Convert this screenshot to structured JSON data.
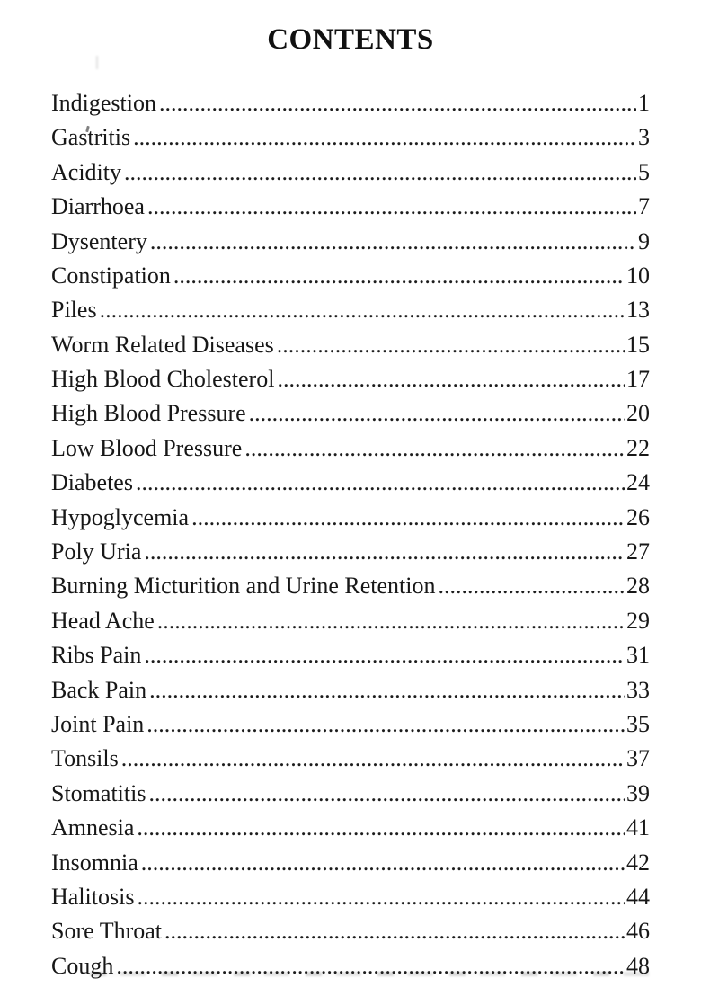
{
  "title": "CONTENTS",
  "colors": {
    "ink": "#1a1a1a",
    "paper": "#ffffff"
  },
  "toc": {
    "entries": [
      {
        "label": "Indigestion",
        "page": "1"
      },
      {
        "label": "Gastritis",
        "page": "3"
      },
      {
        "label": "Acidity",
        "page": "5"
      },
      {
        "label": "Diarrhoea",
        "page": "7"
      },
      {
        "label": "Dysentery",
        "page": "9"
      },
      {
        "label": "Constipation",
        "page": "10"
      },
      {
        "label": "Piles",
        "page": "13"
      },
      {
        "label": "Worm Related Diseases",
        "page": "15"
      },
      {
        "label": "High Blood Cholesterol",
        "page": "17"
      },
      {
        "label": "High Blood Pressure",
        "page": "20"
      },
      {
        "label": "Low Blood Pressure",
        "page": "22"
      },
      {
        "label": "Diabetes",
        "page": "24"
      },
      {
        "label": "Hypoglycemia",
        "page": "26"
      },
      {
        "label": "Poly Uria",
        "page": "27"
      },
      {
        "label": "Burning Micturition and Urine Retention",
        "page": "28"
      },
      {
        "label": "Head Ache",
        "page": "29"
      },
      {
        "label": "Ribs Pain",
        "page": "31"
      },
      {
        "label": "Back Pain",
        "page": "33"
      },
      {
        "label": "Joint Pain",
        "page": "35"
      },
      {
        "label": "Tonsils",
        "page": "37"
      },
      {
        "label": "Stomatitis",
        "page": "39"
      },
      {
        "label": "Amnesia",
        "page": "41"
      },
      {
        "label": "Insomnia",
        "page": "42"
      },
      {
        "label": "Halitosis",
        "page": "44"
      },
      {
        "label": "Sore Throat",
        "page": "46"
      },
      {
        "label": "Cough",
        "page": "48"
      }
    ]
  }
}
